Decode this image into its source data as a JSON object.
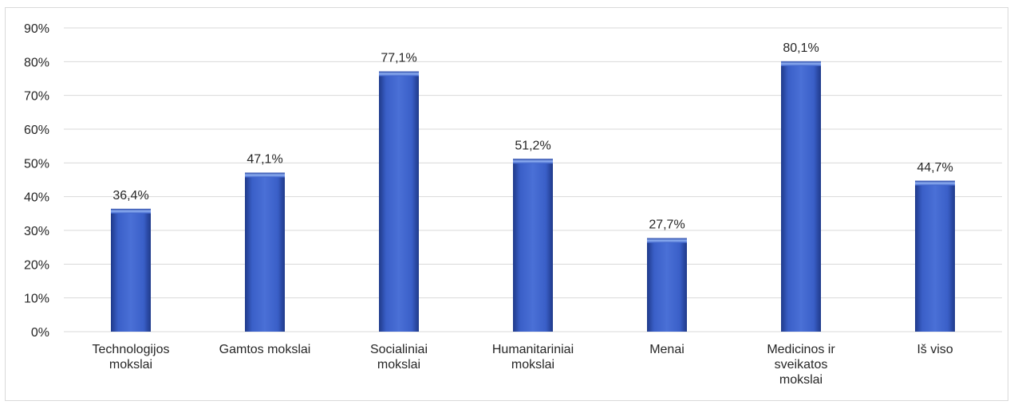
{
  "chart_data": {
    "type": "bar",
    "categories": [
      [
        "Technologijos",
        "mokslai"
      ],
      [
        "Gamtos mokslai"
      ],
      [
        "Socialiniai",
        "mokslai"
      ],
      [
        "Humanitariniai",
        "mokslai"
      ],
      [
        "Menai"
      ],
      [
        "Medicinos ir",
        "sveikatos",
        "mokslai"
      ],
      [
        "Iš viso"
      ]
    ],
    "values": [
      36.4,
      47.1,
      77.1,
      51.2,
      27.7,
      80.1,
      44.7
    ],
    "data_labels": [
      "36,4%",
      "47,1%",
      "77,1%",
      "51,2%",
      "27,7%",
      "80,1%",
      "44,7%"
    ],
    "yticks": [
      "0%",
      "10%",
      "20%",
      "30%",
      "40%",
      "50%",
      "60%",
      "70%",
      "80%",
      "90%"
    ],
    "ylim": [
      0,
      90
    ],
    "grid": true,
    "legend": "none",
    "colors": {
      "bar": "#3a5fc8",
      "bar_dark": "#1f3a8a",
      "bar_light": "#6f92e6",
      "grid": "#d9d9d9",
      "text": "#262626"
    }
  }
}
